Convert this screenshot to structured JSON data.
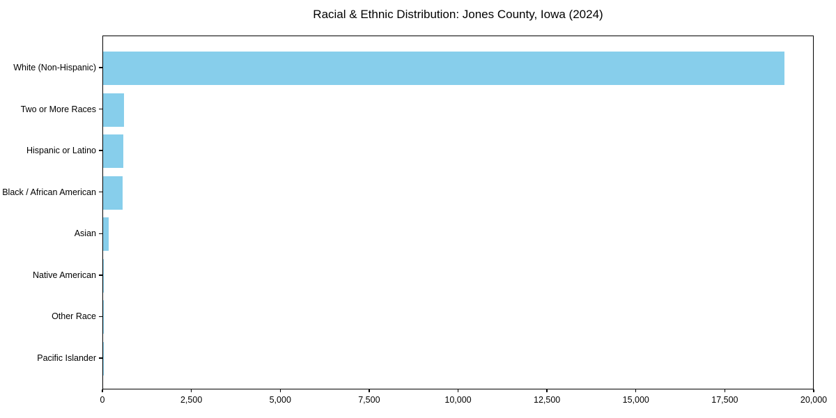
{
  "title": "Racial & Ethnic Distribution: Jones County, Iowa (2024)",
  "colors": {
    "bar": "#87CEEB",
    "axis": "#000000",
    "text": "#000000",
    "background": "#FFFFFF"
  },
  "chart_data": {
    "type": "bar",
    "orientation": "horizontal",
    "title": "Racial & Ethnic Distribution: Jones County, Iowa (2024)",
    "xlabel": "",
    "ylabel": "",
    "categories": [
      "White (Non-Hispanic)",
      "Two or More Races",
      "Hispanic or Latino",
      "Black / African American",
      "Asian",
      "Native American",
      "Other Race",
      "Pacific Islander"
    ],
    "values": [
      19150,
      580,
      560,
      550,
      160,
      15,
      10,
      4
    ],
    "xlim": [
      0,
      20000
    ],
    "x_ticks": [
      0,
      2500,
      5000,
      7500,
      10000,
      12500,
      15000,
      17500,
      20000
    ],
    "x_tick_labels": [
      "0",
      "2,500",
      "5,000",
      "7,500",
      "10,000",
      "12,500",
      "15,000",
      "17,500",
      "20,000"
    ],
    "grid": false,
    "legend": "none",
    "bar_color": "#87CEEB"
  }
}
